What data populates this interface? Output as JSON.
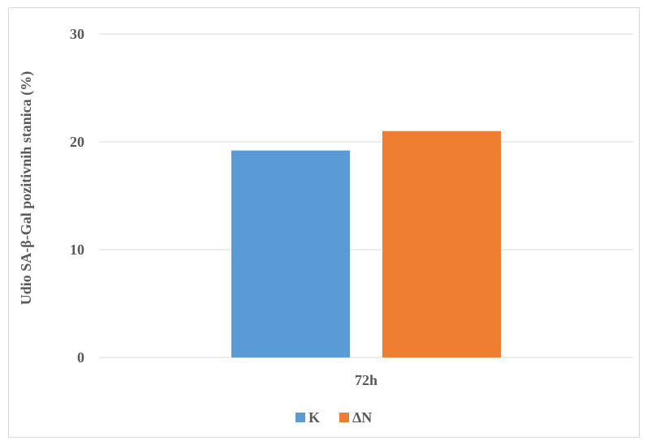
{
  "chart_data": {
    "type": "bar",
    "categories": [
      "72h"
    ],
    "series": [
      {
        "name": "K",
        "values": [
          19.2
        ],
        "color": "#5b9bd5"
      },
      {
        "name": "ΔN",
        "values": [
          21.0
        ],
        "color": "#ed7d31"
      }
    ],
    "ylabel": "Udio SA-β-Gal pozitivnih  stanica (%)",
    "xlabel": "",
    "ylim": [
      0,
      30
    ],
    "yticks": [
      "0",
      "10",
      "20",
      "30"
    ],
    "grid": true,
    "legend_position": "bottom",
    "gridline_color": "#d9d9d9",
    "axis_text_color": "#595959"
  }
}
